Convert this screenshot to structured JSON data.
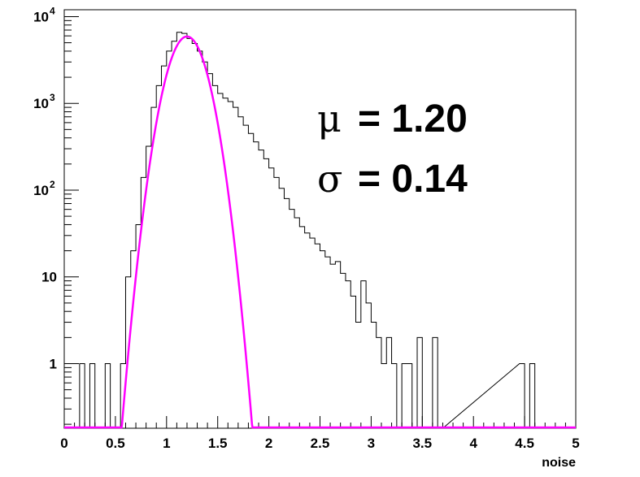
{
  "chart_data": {
    "type": "histogram",
    "title": "",
    "xlabel": "noise",
    "ylabel": "",
    "xlim": [
      0,
      5
    ],
    "ylim": [
      0.18,
      12000
    ],
    "yscale": "log",
    "grid": false,
    "xticks": [
      "0",
      "0.5",
      "1",
      "1.5",
      "2",
      "2.5",
      "3",
      "3.5",
      "4",
      "4.5",
      "5"
    ],
    "yticks": [
      {
        "base": "10",
        "exp": "4",
        "value": 10000
      },
      {
        "base": "10",
        "exp": "3",
        "value": 1000
      },
      {
        "base": "10",
        "exp": "2",
        "value": 100
      },
      {
        "base": "10",
        "exp": "",
        "value": 10
      },
      {
        "base": "1",
        "exp": "",
        "value": 1
      }
    ],
    "bin_width": 0.05,
    "histogram": {
      "color": "#000000",
      "bins": [
        [
          0.15,
          1
        ],
        [
          0.2,
          0
        ],
        [
          0.25,
          1
        ],
        [
          0.3,
          0
        ],
        [
          0.35,
          0
        ],
        [
          0.4,
          1
        ],
        [
          0.45,
          0
        ],
        [
          0.5,
          0
        ],
        [
          0.55,
          1
        ],
        [
          0.6,
          10
        ],
        [
          0.65,
          20
        ],
        [
          0.7,
          40
        ],
        [
          0.75,
          140
        ],
        [
          0.8,
          320
        ],
        [
          0.85,
          900
        ],
        [
          0.9,
          1600
        ],
        [
          0.95,
          2700
        ],
        [
          1.0,
          4000
        ],
        [
          1.05,
          5200
        ],
        [
          1.1,
          6600
        ],
        [
          1.15,
          6400
        ],
        [
          1.2,
          5600
        ],
        [
          1.25,
          4900
        ],
        [
          1.3,
          4000
        ],
        [
          1.35,
          3000
        ],
        [
          1.4,
          2200
        ],
        [
          1.45,
          1600
        ],
        [
          1.5,
          1300
        ],
        [
          1.55,
          1150
        ],
        [
          1.6,
          1050
        ],
        [
          1.65,
          900
        ],
        [
          1.7,
          700
        ],
        [
          1.75,
          560
        ],
        [
          1.8,
          450
        ],
        [
          1.85,
          360
        ],
        [
          1.9,
          290
        ],
        [
          1.95,
          230
        ],
        [
          2.0,
          180
        ],
        [
          2.05,
          140
        ],
        [
          2.1,
          105
        ],
        [
          2.15,
          80
        ],
        [
          2.2,
          60
        ],
        [
          2.25,
          48
        ],
        [
          2.3,
          38
        ],
        [
          2.35,
          32
        ],
        [
          2.4,
          28
        ],
        [
          2.45,
          24
        ],
        [
          2.5,
          20
        ],
        [
          2.55,
          17
        ],
        [
          2.6,
          14
        ],
        [
          2.65,
          15
        ],
        [
          2.7,
          11
        ],
        [
          2.75,
          9
        ],
        [
          2.8,
          6
        ],
        [
          2.85,
          3
        ],
        [
          2.9,
          9
        ],
        [
          2.95,
          5
        ],
        [
          3.0,
          3
        ],
        [
          3.05,
          2
        ],
        [
          3.1,
          1
        ],
        [
          3.15,
          2
        ],
        [
          3.2,
          1
        ],
        [
          3.25,
          0
        ],
        [
          3.3,
          1
        ],
        [
          3.35,
          1
        ],
        [
          3.4,
          0
        ],
        [
          3.45,
          2
        ],
        [
          3.5,
          0
        ],
        [
          3.55,
          0
        ],
        [
          3.6,
          2
        ],
        [
          3.65,
          0
        ],
        [
          4.45,
          1
        ],
        [
          4.5,
          0
        ],
        [
          4.55,
          1
        ],
        [
          4.6,
          0
        ]
      ]
    },
    "fit": {
      "type": "gaussian",
      "color": "#ff00ff",
      "mean": 1.2,
      "sigma": 0.14,
      "amplitude": 5900
    },
    "annotations": [
      {
        "symbol": "μ",
        "text": "= 1.20"
      },
      {
        "symbol": "σ",
        "text": "= 0.14"
      }
    ]
  }
}
